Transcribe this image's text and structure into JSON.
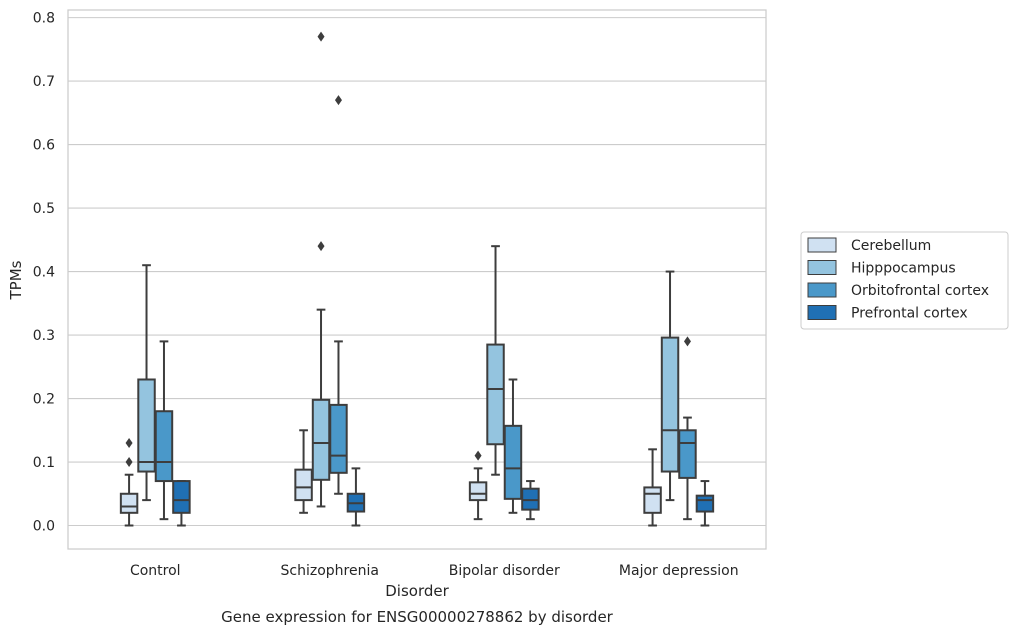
{
  "chart_data": {
    "type": "box",
    "title": "",
    "caption": "Gene expression for ENSG00000278862 by disorder",
    "xlabel": "Disorder",
    "ylabel": "TPMs",
    "ylim": [
      -0.037,
      0.812
    ],
    "yticks": [
      "0.0",
      "0.1",
      "0.2",
      "0.3",
      "0.4",
      "0.5",
      "0.6",
      "0.7",
      "0.8"
    ],
    "ytick_values": [
      0,
      0.1,
      0.2,
      0.3,
      0.4,
      0.5,
      0.6,
      0.7,
      0.8
    ],
    "grid": "horizontal",
    "legend_position": "right",
    "categories": [
      "Control",
      "Schizophrenia",
      "Bipolar disorder",
      "Major depression"
    ],
    "series": [
      {
        "name": "Cerebellum",
        "color": "#d0e1f2",
        "boxes": [
          {
            "whisker_low": 0.0,
            "q1": 0.02,
            "median": 0.03,
            "q3": 0.05,
            "whisker_high": 0.08,
            "outliers": [
              0.1,
              0.13
            ]
          },
          {
            "whisker_low": 0.02,
            "q1": 0.04,
            "median": 0.06,
            "q3": 0.088,
            "whisker_high": 0.15,
            "outliers": []
          },
          {
            "whisker_low": 0.01,
            "q1": 0.04,
            "median": 0.05,
            "q3": 0.068,
            "whisker_high": 0.09,
            "outliers": [
              0.11
            ]
          },
          {
            "whisker_low": 0.0,
            "q1": 0.02,
            "median": 0.05,
            "q3": 0.06,
            "whisker_high": 0.12,
            "outliers": []
          }
        ]
      },
      {
        "name": "Hipppocampus",
        "color": "#94c4df",
        "boxes": [
          {
            "whisker_low": 0.04,
            "q1": 0.085,
            "median": 0.1,
            "q3": 0.23,
            "whisker_high": 0.41,
            "outliers": []
          },
          {
            "whisker_low": 0.03,
            "q1": 0.072,
            "median": 0.13,
            "q3": 0.198,
            "whisker_high": 0.34,
            "outliers": [
              0.44,
              0.77
            ]
          },
          {
            "whisker_low": 0.08,
            "q1": 0.128,
            "median": 0.215,
            "q3": 0.285,
            "whisker_high": 0.44,
            "outliers": []
          },
          {
            "whisker_low": 0.04,
            "q1": 0.085,
            "median": 0.15,
            "q3": 0.296,
            "whisker_high": 0.4,
            "outliers": []
          }
        ]
      },
      {
        "name": "Orbitofrontal cortex",
        "color": "#4a98c9",
        "boxes": [
          {
            "whisker_low": 0.01,
            "q1": 0.07,
            "median": 0.1,
            "q3": 0.18,
            "whisker_high": 0.29,
            "outliers": []
          },
          {
            "whisker_low": 0.05,
            "q1": 0.083,
            "median": 0.11,
            "q3": 0.19,
            "whisker_high": 0.29,
            "outliers": [
              0.67
            ]
          },
          {
            "whisker_low": 0.02,
            "q1": 0.042,
            "median": 0.09,
            "q3": 0.157,
            "whisker_high": 0.23,
            "outliers": []
          },
          {
            "whisker_low": 0.01,
            "q1": 0.075,
            "median": 0.13,
            "q3": 0.15,
            "whisker_high": 0.17,
            "outliers": [
              0.29
            ]
          }
        ]
      },
      {
        "name": "Prefrontal cortex",
        "color": "#2070b4",
        "boxes": [
          {
            "whisker_low": 0.0,
            "q1": 0.02,
            "median": 0.04,
            "q3": 0.07,
            "whisker_high": 0.07,
            "outliers": []
          },
          {
            "whisker_low": 0.0,
            "q1": 0.022,
            "median": 0.035,
            "q3": 0.05,
            "whisker_high": 0.09,
            "outliers": []
          },
          {
            "whisker_low": 0.01,
            "q1": 0.025,
            "median": 0.04,
            "q3": 0.058,
            "whisker_high": 0.07,
            "outliers": []
          },
          {
            "whisker_low": 0.0,
            "q1": 0.022,
            "median": 0.04,
            "q3": 0.047,
            "whisker_high": 0.07,
            "outliers": []
          }
        ]
      }
    ]
  }
}
